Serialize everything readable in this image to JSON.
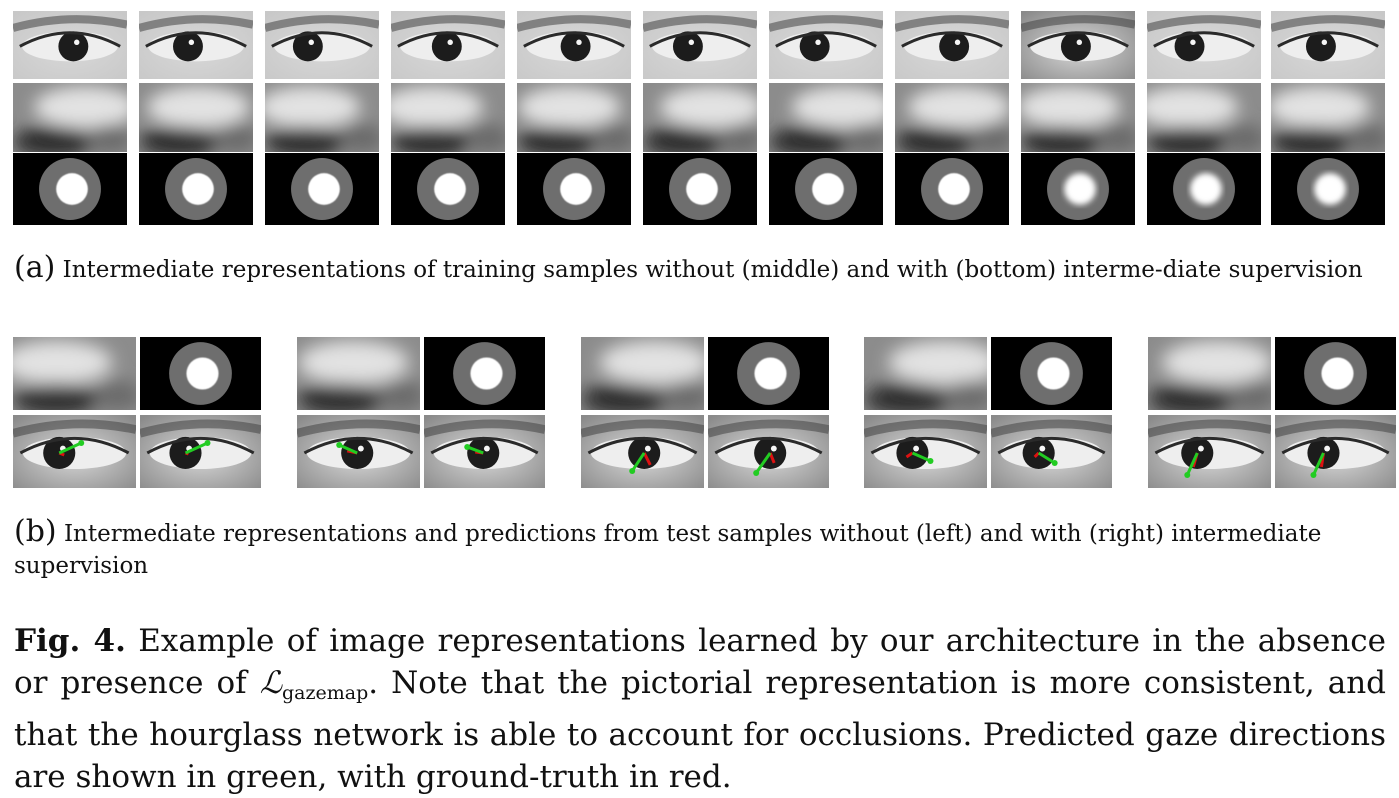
{
  "caption_a": {
    "label": "(a)",
    "text": "Intermediate representations of training samples without (middle) and with (bottom) interme-diate supervision"
  },
  "caption_b": {
    "label": "(b)",
    "text": "Intermediate representations and predictions from test samples without (left) and with (right) intermediate supervision"
  },
  "figure_caption": {
    "label": "Fig. 4.",
    "text_1": "Example of image representations learned by our architecture in the absence or presence of",
    "loss_symbol": "ℒ",
    "loss_subscript": "gazemap",
    "text_2": ". Note that the pictorial representation is more consistent, and that the hourglass network is able to account for occlusions. Predicted gaze directions are shown in green, with ground-truth in red."
  },
  "colors": {
    "predicted": "#22cc22",
    "ground_truth": "#dd1111"
  }
}
